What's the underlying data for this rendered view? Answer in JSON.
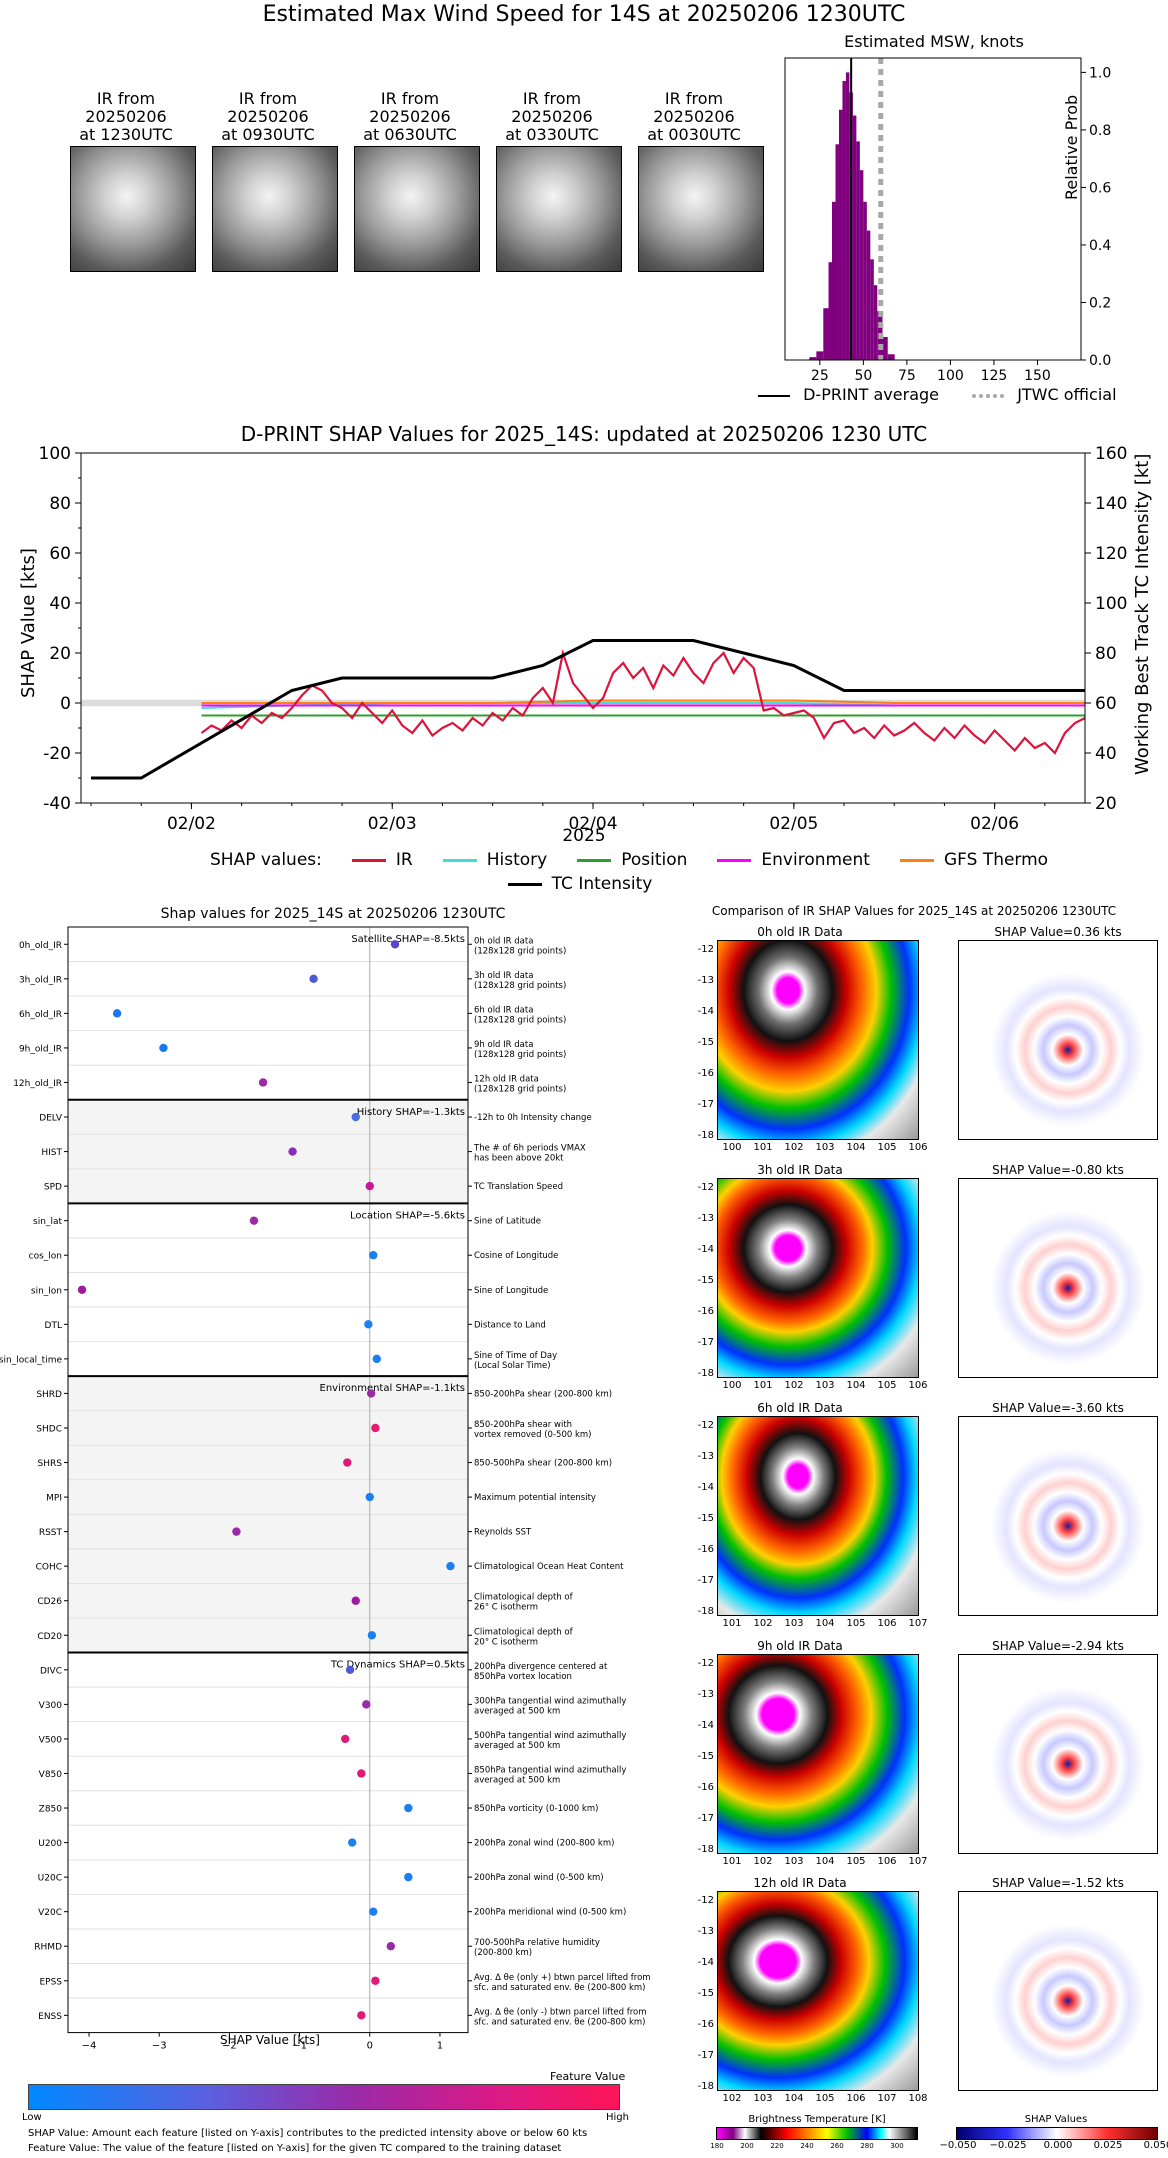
{
  "main_title": "Estimated Max Wind Speed for 14S at 20250206 1230UTC",
  "ir_thumbs": [
    {
      "l1": "IR from",
      "l2": "20250206",
      "l3": "at 1230UTC"
    },
    {
      "l1": "IR from",
      "l2": "20250206",
      "l3": "at 0930UTC"
    },
    {
      "l1": "IR from",
      "l2": "20250206",
      "l3": "at 0630UTC"
    },
    {
      "l1": "IR from",
      "l2": "20250206",
      "l3": "at 0330UTC"
    },
    {
      "l1": "IR from",
      "l2": "20250206",
      "l3": "at 0030UTC"
    }
  ],
  "msw_panel": {
    "title": "Estimated MSW, knots",
    "ylabel": "Relative Prob",
    "legend_avg": "D-PRINT average",
    "legend_jtwc": "JTWC official"
  },
  "shap_ts": {
    "title": "D-PRINT SHAP Values for 2025_14S: updated at 20250206 1230 UTC",
    "ylabel_left": "SHAP Value [kts]",
    "ylabel_right": "Working Best Track TC Intensity [kt]",
    "xlabel": "2025",
    "legend_prefix": "SHAP values:",
    "legend_tc": "TC Intensity"
  },
  "bar_panel": {
    "title": "Shap values for 2025_14S at 20250206 1230UTC",
    "xlabel": "SHAP Value [kts]",
    "colorbar_title": "Feature Value",
    "low": "Low",
    "high": "High",
    "groups": [
      {
        "label": "Satellite SHAP=-8.5kts",
        "start": 0,
        "end": 5,
        "shaded": false
      },
      {
        "label": "History SHAP=-1.3kts",
        "start": 5,
        "end": 8,
        "shaded": true
      },
      {
        "label": "Location SHAP=-5.6kts",
        "start": 8,
        "end": 13,
        "shaded": false
      },
      {
        "label": "Environmental SHAP=-1.1kts",
        "start": 13,
        "end": 21,
        "shaded": true
      },
      {
        "label": "TC Dynamics SHAP=0.5kts",
        "start": 21,
        "end": 32,
        "shaded": false
      }
    ],
    "rows": [
      {
        "name": "0h_old_IR",
        "d1": "0h old IR data",
        "d2": "(128x128 grid points)",
        "v": 0.36,
        "c": "#5a46c8"
      },
      {
        "name": "3h_old_IR",
        "d1": "3h old IR data",
        "d2": "(128x128 grid points)",
        "v": -0.8,
        "c": "#4a5ad8"
      },
      {
        "name": "6h_old_IR",
        "d1": "6h old IR data",
        "d2": "(128x128 grid points)",
        "v": -3.6,
        "c": "#1a78f0"
      },
      {
        "name": "9h_old_IR",
        "d1": "9h old IR data",
        "d2": "(128x128 grid points)",
        "v": -2.94,
        "c": "#1a78f0"
      },
      {
        "name": "12h_old_IR",
        "d1": "12h old IR data",
        "d2": "(128x128 grid points)",
        "v": -1.52,
        "c": "#9a2aa8"
      },
      {
        "name": "DELV",
        "d1": "-12h to 0h Intensity change",
        "d2": "",
        "v": -0.2,
        "c": "#4a6ae0"
      },
      {
        "name": "HIST",
        "d1": "The # of 6h periods VMAX",
        "d2": "has been above 20kt",
        "v": -1.1,
        "c": "#8a30b8"
      },
      {
        "name": "SPD",
        "d1": "TC Translation Speed",
        "d2": "",
        "v": 0.0,
        "c": "#c81a98"
      },
      {
        "name": "sin_lat",
        "d1": "Sine of Latitude",
        "d2": "",
        "v": -1.65,
        "c": "#9a2aa8"
      },
      {
        "name": "cos_lon",
        "d1": "Cosine of Longitude",
        "d2": "",
        "v": 0.05,
        "c": "#1a80f0"
      },
      {
        "name": "sin_lon",
        "d1": "Sine of Longitude",
        "d2": "",
        "v": -4.1,
        "c": "#a01aa0"
      },
      {
        "name": "DTL",
        "d1": "Distance to Land",
        "d2": "",
        "v": -0.02,
        "c": "#1a80f0"
      },
      {
        "name": "sin_local_time",
        "d1": "Sine of Time of Day",
        "d2": "(Local Solar Time)",
        "v": 0.1,
        "c": "#1a80f0"
      },
      {
        "name": "SHRD",
        "d1": "850-200hPa shear (200-800 km)",
        "d2": "",
        "v": 0.02,
        "c": "#9a2aa8"
      },
      {
        "name": "SHDC",
        "d1": "850-200hPa shear with",
        "d2": "vortex removed (0-500 km)",
        "v": 0.08,
        "c": "#e81a70"
      },
      {
        "name": "SHRS",
        "d1": "850-500hPa shear (200-800 km)",
        "d2": "",
        "v": -0.32,
        "c": "#e01a78"
      },
      {
        "name": "MPI",
        "d1": "Maximum potential intensity",
        "d2": "",
        "v": 0.0,
        "c": "#1a80f0"
      },
      {
        "name": "RSST",
        "d1": "Reynolds SST",
        "d2": "",
        "v": -1.9,
        "c": "#9a2aa8"
      },
      {
        "name": "COHC",
        "d1": "Climatological Ocean Heat Content",
        "d2": "",
        "v": 1.15,
        "c": "#1a80f0"
      },
      {
        "name": "CD26",
        "d1": "Climatological depth of",
        "d2": "26° C isotherm",
        "v": -0.2,
        "c": "#a01aa0"
      },
      {
        "name": "CD20",
        "d1": "Climatological depth of",
        "d2": "20° C isotherm",
        "v": 0.03,
        "c": "#1a80f0"
      },
      {
        "name": "DIVC",
        "d1": "200hPa divergence centered at",
        "d2": "850hPa vortex location",
        "v": -0.28,
        "c": "#4a5ad8"
      },
      {
        "name": "V300",
        "d1": "300hPa tangential wind azimuthally",
        "d2": "averaged at 500 km",
        "v": -0.05,
        "c": "#9a2aa8"
      },
      {
        "name": "V500",
        "d1": "500hPa tangential wind azimuthally",
        "d2": "averaged at 500 km",
        "v": -0.35,
        "c": "#e01a78"
      },
      {
        "name": "V850",
        "d1": "850hPa tangential wind azimuthally",
        "d2": "averaged at 500 km",
        "v": -0.12,
        "c": "#e01a78"
      },
      {
        "name": "Z850",
        "d1": "850hPa vorticity (0-1000 km)",
        "d2": "",
        "v": 0.55,
        "c": "#1a80f0"
      },
      {
        "name": "U200",
        "d1": "200hPa zonal wind (200-800 km)",
        "d2": "",
        "v": -0.25,
        "c": "#1a80f0"
      },
      {
        "name": "U20C",
        "d1": "200hPa zonal wind (0-500 km)",
        "d2": "",
        "v": 0.55,
        "c": "#1a80f0"
      },
      {
        "name": "V20C",
        "d1": "200hPa meridional wind (0-500 km)",
        "d2": "",
        "v": 0.05,
        "c": "#1a80f0"
      },
      {
        "name": "RHMD",
        "d1": "700-500hPa relative humidity",
        "d2": "(200-800 km)",
        "v": 0.3,
        "c": "#9a2aa8"
      },
      {
        "name": "EPSS",
        "d1": "Avg. Δ θe (only +) btwn parcel lifted from",
        "d2": "sfc. and saturated env. θe (200-800 km)",
        "v": 0.08,
        "c": "#e01a78"
      },
      {
        "name": "ENSS",
        "d1": "Avg. Δ θe (only -) btwn parcel lifted from",
        "d2": "sfc. and saturated env. θe (200-800 km)",
        "v": -0.12,
        "c": "#e01a78"
      }
    ],
    "footnote1": "SHAP Value: Amount each feature [listed on Y-axis] contributes to the predicted intensity above or below 60 kts",
    "footnote2": "Feature Value: The value of the feature [listed on Y-axis] for the given TC compared to the training dataset"
  },
  "compare_panel": {
    "title": "Comparison of IR SHAP Values for 2025_14S at 20250206 1230UTC",
    "rows": [
      {
        "ir_title": "0h old IR Data",
        "shap_title": "SHAP Value=0.36 kts",
        "xt": [
          "100",
          "101",
          "102",
          "103",
          "104",
          "105",
          "106"
        ]
      },
      {
        "ir_title": "3h old IR Data",
        "shap_title": "SHAP Value=-0.80 kts",
        "xt": [
          "100",
          "101",
          "102",
          "103",
          "104",
          "105",
          "106"
        ]
      },
      {
        "ir_title": "6h old IR Data",
        "shap_title": "SHAP Value=-3.60 kts",
        "xt": [
          "101",
          "102",
          "103",
          "104",
          "105",
          "106",
          "107"
        ]
      },
      {
        "ir_title": "9h old IR Data",
        "shap_title": "SHAP Value=-2.94 kts",
        "xt": [
          "101",
          "102",
          "103",
          "104",
          "105",
          "106",
          "107"
        ]
      },
      {
        "ir_title": "12h old IR Data",
        "shap_title": "SHAP Value=-1.52 kts",
        "xt": [
          "102",
          "103",
          "104",
          "105",
          "106",
          "107",
          "108"
        ]
      }
    ],
    "yticks": [
      "-12",
      "-13",
      "-14",
      "-15",
      "-16",
      "-17",
      "-18"
    ],
    "bt_label": "Brightness Temperature [K]",
    "bt_ticks": [
      "180",
      "200",
      "220",
      "240",
      "260",
      "280",
      "300"
    ],
    "shap_label": "SHAP Values",
    "shap_ticks": [
      "−0.050",
      "−0.025",
      "0.000",
      "0.025",
      "0.050"
    ]
  },
  "chart_data": [
    {
      "type": "bar",
      "title": "Estimated MSW, knots",
      "ylabel": "Relative Prob",
      "xlim": [
        5,
        175
      ],
      "ylim": [
        0,
        1.05
      ],
      "xticks": [
        25,
        50,
        75,
        100,
        125,
        150
      ],
      "yticks": [
        0.0,
        0.2,
        0.4,
        0.6,
        0.8,
        1.0
      ],
      "bins": [
        {
          "x0": 19,
          "x1": 23,
          "p": 0.01
        },
        {
          "x0": 23,
          "x1": 27,
          "p": 0.03
        },
        {
          "x0": 27,
          "x1": 30,
          "p": 0.18
        },
        {
          "x0": 30,
          "x1": 32,
          "p": 0.34
        },
        {
          "x0": 32,
          "x1": 34,
          "p": 0.55
        },
        {
          "x0": 34,
          "x1": 36,
          "p": 0.75
        },
        {
          "x0": 36,
          "x1": 38,
          "p": 0.87
        },
        {
          "x0": 38,
          "x1": 40,
          "p": 0.97
        },
        {
          "x0": 40,
          "x1": 42,
          "p": 1.0
        },
        {
          "x0": 42,
          "x1": 44,
          "p": 0.93
        },
        {
          "x0": 44,
          "x1": 46,
          "p": 0.85
        },
        {
          "x0": 46,
          "x1": 48,
          "p": 0.76
        },
        {
          "x0": 48,
          "x1": 50,
          "p": 0.66
        },
        {
          "x0": 50,
          "x1": 52,
          "p": 0.55
        },
        {
          "x0": 52,
          "x1": 54,
          "p": 0.45
        },
        {
          "x0": 54,
          "x1": 56,
          "p": 0.35
        },
        {
          "x0": 56,
          "x1": 58,
          "p": 0.26
        },
        {
          "x0": 58,
          "x1": 61,
          "p": 0.17
        },
        {
          "x0": 61,
          "x1": 64,
          "p": 0.08
        },
        {
          "x0": 64,
          "x1": 68,
          "p": 0.02
        }
      ],
      "dprint_avg": 43,
      "jtwc_official": 60,
      "color": "#800080"
    },
    {
      "type": "line",
      "title": "D-PRINT SHAP Values for 2025_14S: updated at 20250206 1230 UTC",
      "xlabel": "2025",
      "ylabel": "SHAP Value [kts]",
      "ylabel_right": "Working Best Track TC Intensity [kt]",
      "xlim": [
        1.45,
        6.45
      ],
      "ylim": [
        -40,
        100
      ],
      "ylim_right": [
        20,
        160
      ],
      "xticks": [
        {
          "x": 2,
          "label": "02/02"
        },
        {
          "x": 3,
          "label": "02/03"
        },
        {
          "x": 4,
          "label": "02/04"
        },
        {
          "x": 5,
          "label": "02/05"
        },
        {
          "x": 6,
          "label": "02/06"
        }
      ],
      "yticks": [
        -40,
        -20,
        0,
        20,
        40,
        60,
        80,
        100
      ],
      "yticks_right": [
        20,
        40,
        60,
        80,
        100,
        120,
        140,
        160
      ],
      "series": [
        {
          "name": "IR",
          "color": "#dc143c",
          "x": [
            2.05,
            2.1,
            2.15,
            2.2,
            2.25,
            2.3,
            2.35,
            2.4,
            2.45,
            2.5,
            2.55,
            2.6,
            2.65,
            2.7,
            2.75,
            2.8,
            2.85,
            2.9,
            2.95,
            3.0,
            3.05,
            3.1,
            3.15,
            3.2,
            3.25,
            3.3,
            3.35,
            3.4,
            3.45,
            3.5,
            3.55,
            3.6,
            3.65,
            3.7,
            3.75,
            3.8,
            3.85,
            3.9,
            3.95,
            4.0,
            4.05,
            4.1,
            4.15,
            4.2,
            4.25,
            4.3,
            4.35,
            4.4,
            4.45,
            4.5,
            4.55,
            4.6,
            4.65,
            4.7,
            4.75,
            4.8,
            4.85,
            4.9,
            4.95,
            5.0,
            5.05,
            5.1,
            5.15,
            5.2,
            5.25,
            5.3,
            5.35,
            5.4,
            5.45,
            5.5,
            5.55,
            5.6,
            5.65,
            5.7,
            5.75,
            5.8,
            5.85,
            5.9,
            5.95,
            6.0,
            6.05,
            6.1,
            6.15,
            6.2,
            6.25,
            6.3,
            6.35,
            6.4,
            6.45
          ],
          "y": [
            -12,
            -9,
            -11,
            -7,
            -10,
            -5,
            -8,
            -4,
            -6,
            -2,
            3,
            7,
            5,
            0,
            -2,
            -6,
            0,
            -4,
            -8,
            -3,
            -9,
            -12,
            -7,
            -13,
            -10,
            -8,
            -11,
            -6,
            -9,
            -4,
            -7,
            -2,
            -5,
            2,
            6,
            0,
            20,
            8,
            3,
            -2,
            2,
            12,
            16,
            10,
            14,
            6,
            15,
            11,
            18,
            12,
            8,
            16,
            20,
            12,
            18,
            14,
            -3,
            -2,
            -5,
            -4,
            -3,
            -6,
            -14,
            -8,
            -7,
            -12,
            -10,
            -14,
            -9,
            -13,
            -11,
            -8,
            -12,
            -15,
            -10,
            -14,
            -9,
            -13,
            -16,
            -11,
            -15,
            -19,
            -14,
            -18,
            -16,
            -20,
            -12,
            -8,
            -6
          ]
        },
        {
          "name": "History",
          "color": "#40e0d0",
          "x": [
            2.05,
            2.5,
            3.0,
            3.5,
            4.0,
            4.5,
            5.0,
            5.5,
            6.0,
            6.45
          ],
          "y": [
            -2,
            -1,
            0,
            0,
            0,
            0,
            0,
            -1,
            -1,
            -1
          ]
        },
        {
          "name": "Position",
          "color": "#2ca02c",
          "x": [
            2.05,
            2.5,
            3.0,
            3.5,
            4.0,
            4.5,
            5.0,
            5.5,
            6.0,
            6.45
          ],
          "y": [
            -5,
            -5,
            -5,
            -5,
            -5,
            -5,
            -5,
            -5,
            -5,
            -5
          ]
        },
        {
          "name": "Environment",
          "color": "#ff00ff",
          "x": [
            2.05,
            2.5,
            3.0,
            3.5,
            4.0,
            4.5,
            5.0,
            5.5,
            6.0,
            6.45
          ],
          "y": [
            -1,
            -1,
            -1,
            -1,
            -1,
            -1,
            -1,
            -1,
            -1,
            -1
          ]
        },
        {
          "name": "GFS Thermo",
          "color": "#ff7f0e",
          "x": [
            2.05,
            2.5,
            3.0,
            3.5,
            4.0,
            4.5,
            5.0,
            5.5,
            6.0,
            6.45
          ],
          "y": [
            0,
            0,
            0,
            0,
            1,
            1,
            1,
            0,
            0,
            0
          ]
        }
      ],
      "tc_intensity": {
        "name": "TC Intensity",
        "color": "#000000",
        "x": [
          1.5,
          1.75,
          2.5,
          2.75,
          3.0,
          3.5,
          3.75,
          4.0,
          4.25,
          4.5,
          4.75,
          5.0,
          5.25,
          5.5,
          6.0,
          6.45
        ],
        "y": [
          30,
          30,
          65,
          70,
          70,
          70,
          75,
          85,
          85,
          85,
          80,
          75,
          65,
          65,
          65,
          65
        ]
      }
    },
    {
      "type": "scatter",
      "title": "Shap values for 2025_14S at 20250206 1230UTC",
      "xlabel": "SHAP Value [kts]",
      "xlim": [
        -4.3,
        1.4
      ],
      "xticks": [
        -4,
        -3,
        -2,
        -1,
        0,
        1
      ]
    }
  ]
}
